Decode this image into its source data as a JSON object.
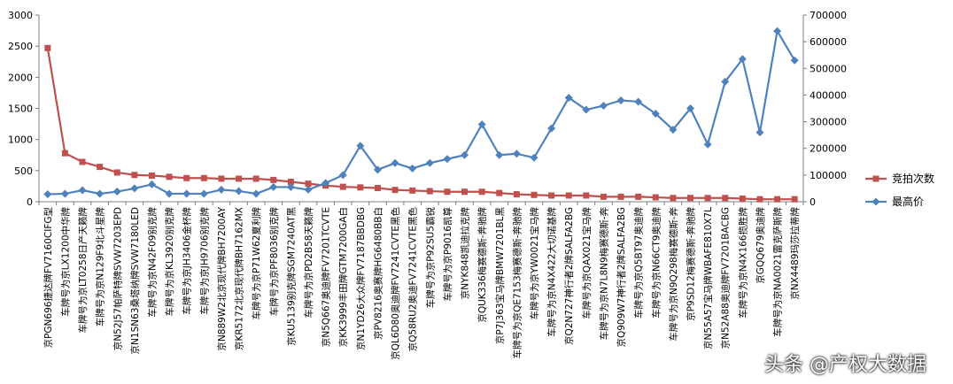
{
  "chart_data": {
    "type": "line",
    "categories": [
      "京PGN696捷达牌FV7160CIFG型",
      "车牌号为京LX1200中华牌",
      "车牌号为京LT0258日产天籁牌",
      "车牌号为京N129F9北斗星牌",
      "京N52J57帕萨特牌SVW7203EPD",
      "京N1SN63桑塔纳牌SVW7180LED",
      "车牌号为京N42F09别克牌",
      "车牌号为京KL3920别克牌",
      "车牌号为京JH3406金杯牌",
      "车牌号为京JH9706别克牌",
      "京N889W2北京现代牌BH7200AY",
      "京KR5172北京现代牌BH7162MX",
      "车牌号为京P71W62夏利牌",
      "车牌号为京PF8036别克牌",
      "京KU5139别克牌SGM7240AT黑",
      "车牌号为京PD2B58天籁牌",
      "京N5Q667奥迪牌FV7201TCVTE",
      "京KK3999丰田牌GTM7200GA白",
      "京N1YD26大众牌FV7187BBDBG",
      "京PV8216奥赛牌HG6480BB白",
      "京QL6D80奥迪牌FV7241CVTE黑色",
      "京Q58RU2奥迪FV7241CVTE黑色",
      "车牌号为京P92SU5霸锐",
      "车牌号为京P9016凯尊",
      "京NYK848凯迪拉克牌",
      "京QUK336梅赛德斯-奔驰牌",
      "京P7J363宝马牌BMW7201BL黑",
      "车牌号为京QE7153梅赛德斯-奔驰牌",
      "车牌号为京YW0021宝马牌",
      "车牌号为京N4X422大切诺基牌",
      "京Q2N727神行者2牌SALFA2BG",
      "车牌号为京QAX021宝马牌",
      "车牌号为京N7L8N9梅赛德斯-奔",
      "京Q909W7神行者2牌SALFA2BG",
      "车牌号为京Q5BT97奥迪牌",
      "车牌号为京N66CT9奥迪牌",
      "车牌号为京N9Q298梅赛德斯-奔",
      "京P9SD12梅赛德斯-奔驰牌",
      "京N55A57宝马牌WBAFE810X7L",
      "京N52A88奥迪牌FV7201BACBG",
      "车牌号为京N4X166揽胜牌",
      "京GQQ679奥迪牌",
      "车牌号为京NA0021雷克萨斯牌",
      "京NX4489玛莎拉蒂牌"
    ],
    "series": [
      {
        "name": "竞拍次数",
        "axis": "left",
        "color": "#c0504d",
        "marker": "square",
        "values": [
          2470,
          780,
          640,
          560,
          470,
          430,
          420,
          400,
          380,
          380,
          370,
          370,
          370,
          350,
          320,
          290,
          260,
          240,
          230,
          220,
          190,
          180,
          170,
          160,
          160,
          160,
          140,
          120,
          110,
          100,
          100,
          100,
          80,
          80,
          80,
          70,
          60,
          60,
          60,
          60,
          50,
          40,
          40,
          40
        ]
      },
      {
        "name": "最高价",
        "axis": "right",
        "color": "#4f81bd",
        "marker": "diamond",
        "values": [
          28000,
          30000,
          43000,
          30000,
          38000,
          50000,
          65000,
          30000,
          30000,
          30000,
          45000,
          40000,
          30000,
          55000,
          55000,
          45000,
          70000,
          100000,
          210000,
          120000,
          145000,
          125000,
          145000,
          160000,
          175000,
          290000,
          175000,
          180000,
          165000,
          275000,
          390000,
          345000,
          360000,
          380000,
          375000,
          330000,
          270000,
          350000,
          215000,
          450000,
          535000,
          260000,
          640000,
          530000
        ]
      }
    ],
    "ylim": [
      0,
      3000
    ],
    "y_ticks": [
      "0",
      "500",
      "1000",
      "1500",
      "2000",
      "2500",
      "3000"
    ],
    "y2lim": [
      0,
      700000
    ],
    "y2_ticks": [
      "0",
      "100000",
      "200000",
      "300000",
      "400000",
      "500000",
      "600000",
      "700000"
    ],
    "grid": false,
    "legend": "right"
  },
  "watermark": "头条 @产权大数据"
}
